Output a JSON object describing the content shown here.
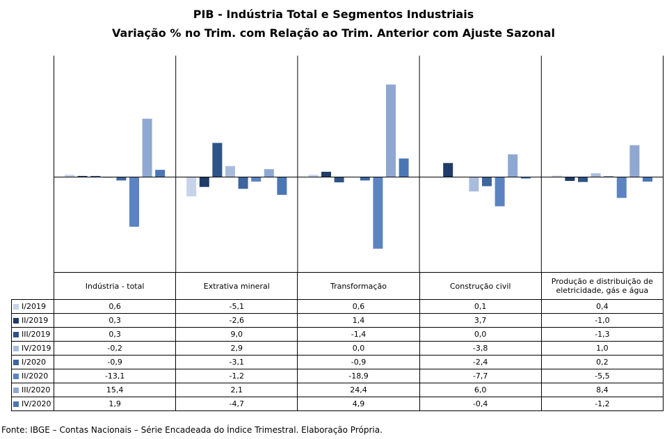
{
  "title": "PIB - Indústria Total e Segmentos Industriais",
  "subtitle": "Variação % no Trim. com Relação ao Trim. Anterior com Ajuste Sazonal",
  "source": "Fonte: IBGE – Contas Nacionais – Série Encadeada do Índice Trimestral. Elaboração Própria.",
  "chart_data": {
    "type": "bar",
    "categories": [
      "Indústria - total",
      "Extrativa mineral",
      "Transformação",
      "Construção civil",
      "Produção e distribuição de eletricidade, gás e água"
    ],
    "series": [
      {
        "name": "I/2019",
        "color": "#c6d3e8",
        "values": [
          0.6,
          -5.1,
          0.6,
          0.1,
          0.4
        ],
        "labels": [
          "0,6",
          "-5,1",
          "0,6",
          "0,1",
          "0,4"
        ]
      },
      {
        "name": "II/2019",
        "color": "#1f3b67",
        "values": [
          0.3,
          -2.6,
          1.4,
          3.7,
          -1.0
        ],
        "labels": [
          "0,3",
          "-2,6",
          "1,4",
          "3,7",
          "-1,0"
        ]
      },
      {
        "name": "III/2019",
        "color": "#2e5386",
        "values": [
          0.3,
          9.0,
          -1.4,
          0.0,
          -1.3
        ],
        "labels": [
          "0,3",
          "9,0",
          "-1,4",
          "0,0",
          "-1,3"
        ]
      },
      {
        "name": "IV/2019",
        "color": "#a9bcdc",
        "values": [
          -0.2,
          2.9,
          0.0,
          -3.8,
          1.0
        ],
        "labels": [
          "-0,2",
          "2,9",
          "0,0",
          "-3,8",
          "1,0"
        ]
      },
      {
        "name": "I/2020",
        "color": "#3d66a0",
        "values": [
          -0.9,
          -3.1,
          -0.9,
          -2.4,
          0.2
        ],
        "labels": [
          "-0,9",
          "-3,1",
          "-0,9",
          "-2,4",
          "0,2"
        ]
      },
      {
        "name": "II/2020",
        "color": "#5b83c1",
        "values": [
          -13.1,
          -1.2,
          -18.9,
          -7.7,
          -5.5
        ],
        "labels": [
          "-13,1",
          "-1,2",
          "-18,9",
          "-7,7",
          "-5,5"
        ]
      },
      {
        "name": "III/2020",
        "color": "#8fa8d2",
        "values": [
          15.4,
          2.1,
          24.4,
          6.0,
          8.4
        ],
        "labels": [
          "15,4",
          "2,1",
          "24,4",
          "6,0",
          "8,4"
        ]
      },
      {
        "name": "IV/2020",
        "color": "#4a77b4",
        "values": [
          1.9,
          -4.7,
          4.9,
          -0.4,
          -1.2
        ],
        "labels": [
          "1,9",
          "-4,7",
          "4,9",
          "-0,4",
          "-1,2"
        ]
      }
    ],
    "ylim": [
      -19.2,
      25.1
    ],
    "legend": "table",
    "grid": false
  }
}
